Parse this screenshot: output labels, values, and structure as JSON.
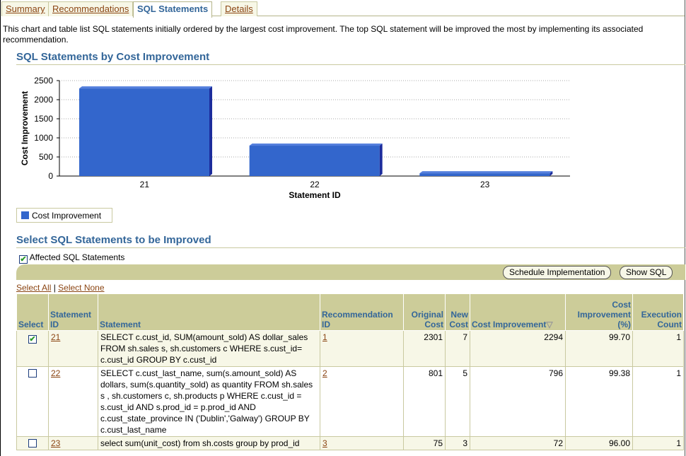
{
  "tabs": [
    "Summary",
    "Recommendations",
    "SQL Statements",
    "Details"
  ],
  "intro": "This chart and table list SQL statements initially ordered by the largest cost improvement. The top SQL statement will be improved the most by implementing its associated recommendation.",
  "chart_section_title": "SQL Statements by Cost Improvement",
  "chart_data": {
    "type": "bar",
    "categories": [
      "21",
      "22",
      "23"
    ],
    "values": [
      2294,
      796,
      72
    ],
    "xlabel": "Statement ID",
    "ylabel": "Cost Improvement",
    "ylim": [
      0,
      2500
    ],
    "yticks": [
      "0",
      "500",
      "1000",
      "1500",
      "2000",
      "2500"
    ],
    "legend": [
      "Cost Improvement"
    ],
    "legend_placement": "bottom-left",
    "grid": true,
    "color": "#3366cc"
  },
  "table_section_title": "Select SQL Statements to be Improved",
  "affected_label": "Affected SQL Statements",
  "buttons": {
    "schedule": "Schedule Implementation",
    "show_sql": "Show SQL"
  },
  "select_all": "Select All",
  "select_none": "Select None",
  "columns": [
    "Select",
    "Statement ID",
    "Statement",
    "Recommendation ID",
    "Original Cost",
    "New Cost",
    "Cost Improvement",
    "Cost Improvement (%)",
    "Execution Count"
  ],
  "rows": [
    {
      "checked": true,
      "id": "21",
      "statement": "SELECT c.cust_id, SUM(amount_sold) AS dollar_sales FROM sh.sales s, sh.customers c WHERE s.cust_id= c.cust_id GROUP BY c.cust_id",
      "rec": "1",
      "orig": "2301",
      "new": "7",
      "imp": "2294",
      "pct": "99.70",
      "exec": "1"
    },
    {
      "checked": false,
      "id": "22",
      "statement": "SELECT c.cust_last_name, sum(s.amount_sold) AS dollars, sum(s.quantity_sold) as quantity FROM sh.sales s , sh.customers c, sh.products p WHERE c.cust_id = s.cust_id AND s.prod_id = p.prod_id AND c.cust_state_province IN ('Dublin','Galway') GROUP BY c.cust_last_name",
      "rec": "2",
      "orig": "801",
      "new": "5",
      "imp": "796",
      "pct": "99.38",
      "exec": "1"
    },
    {
      "checked": false,
      "id": "23",
      "statement": "select sum(unit_cost) from sh.costs group by prod_id",
      "rec": "3",
      "orig": "75",
      "new": "3",
      "imp": "72",
      "pct": "96.00",
      "exec": "1"
    }
  ]
}
